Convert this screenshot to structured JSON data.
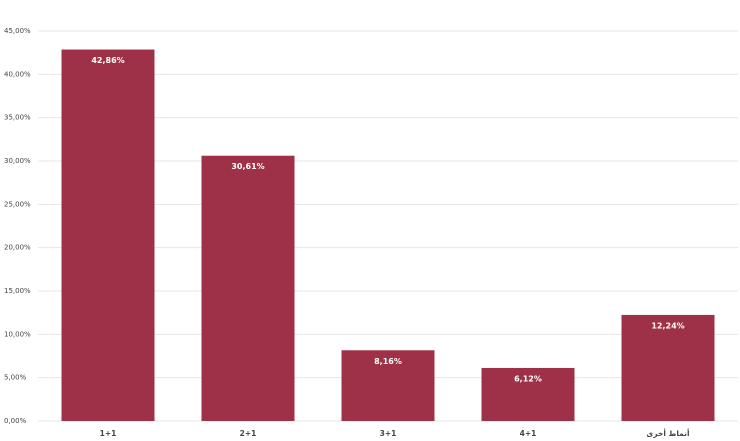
{
  "chart_data": {
    "type": "bar",
    "categories": [
      "1+1",
      "2+1",
      "3+1",
      "4+1",
      "أنماط أخرى"
    ],
    "values": [
      42.86,
      30.61,
      8.16,
      6.12,
      12.24
    ],
    "value_labels": [
      "42,86%",
      "30,61%",
      "8,16%",
      "6,12%",
      "12,24%"
    ],
    "color": "#9e3147",
    "ylim": [
      0,
      45
    ],
    "yticks": [
      {
        "value": 0,
        "label": "0,00%"
      },
      {
        "value": 5,
        "label": "5,00%"
      },
      {
        "value": 10,
        "label": "10,00%"
      },
      {
        "value": 15,
        "label": "15,00%"
      },
      {
        "value": 20,
        "label": "20,00%"
      },
      {
        "value": 25,
        "label": "25,00%"
      },
      {
        "value": 30,
        "label": "30,00%"
      },
      {
        "value": 35,
        "label": "35,00%"
      },
      {
        "value": 40,
        "label": "40,00%"
      },
      {
        "value": 45,
        "label": "45,00%"
      }
    ],
    "grid": true
  }
}
